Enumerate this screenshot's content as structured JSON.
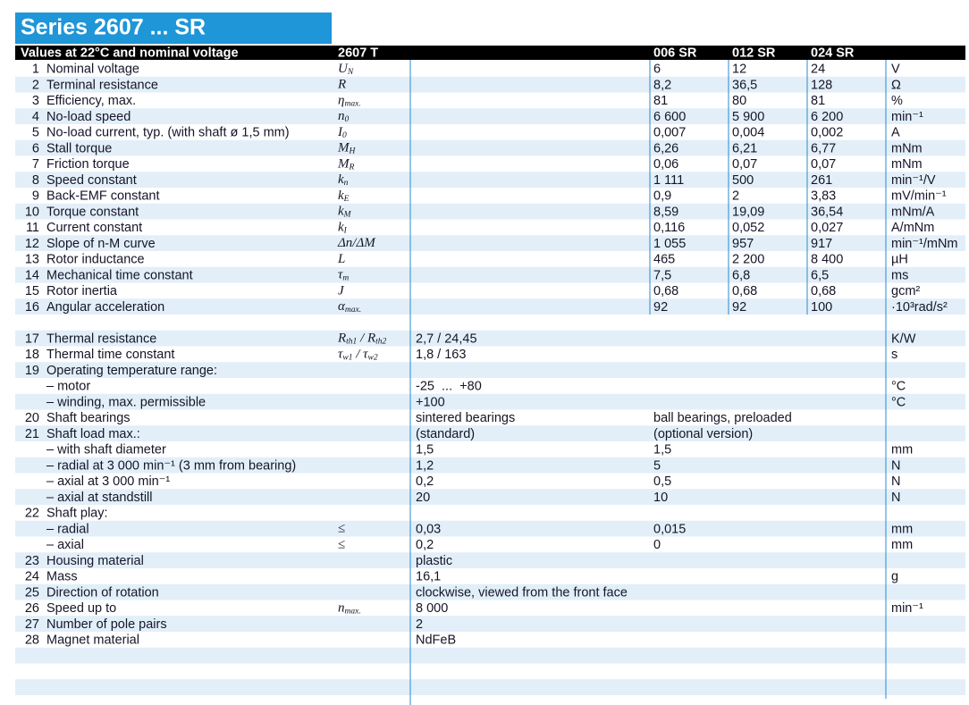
{
  "title": "Series 2607 ... SR",
  "header": {
    "conditions": "Values at 22°C and nominal voltage",
    "type": "2607 T",
    "variants": [
      "006 SR",
      "012 SR",
      "024 SR"
    ]
  },
  "block1": [
    {
      "no": "1",
      "label": "Nominal voltage",
      "symbol": [
        "U",
        "N"
      ],
      "sr_values": [
        "6",
        "12",
        "24"
      ],
      "unit": "V"
    },
    {
      "no": "2",
      "label": "Terminal resistance",
      "symbol": [
        "R"
      ],
      "sr_values": [
        "8,2",
        "36,5",
        "128"
      ],
      "unit": "Ω"
    },
    {
      "no": "3",
      "label": "Efficiency, max.",
      "symbol": [
        "η",
        "max."
      ],
      "sr_values": [
        "81",
        "80",
        "81"
      ],
      "unit": "%"
    },
    {
      "no": "4",
      "label": "No-load speed",
      "symbol": [
        "n",
        "0"
      ],
      "sr_values": [
        "6 600",
        "5 900",
        "6 200"
      ],
      "unit": "min⁻¹"
    },
    {
      "no": "5",
      "label": "No-load current, typ. (with shaft ø 1,5 mm)",
      "symbol": [
        "I",
        "0"
      ],
      "sr_values": [
        "0,007",
        "0,004",
        "0,002"
      ],
      "unit": "A"
    },
    {
      "no": "6",
      "label": "Stall torque",
      "symbol": [
        "M",
        "H"
      ],
      "sr_values": [
        "6,26",
        "6,21",
        "6,77"
      ],
      "unit": "mNm"
    },
    {
      "no": "7",
      "label": "Friction torque",
      "symbol": [
        "M",
        "R"
      ],
      "sr_values": [
        "0,06",
        "0,07",
        "0,07"
      ],
      "unit": "mNm"
    },
    {
      "no": "8",
      "label": "Speed constant",
      "symbol": [
        "k",
        "n"
      ],
      "sr_values": [
        "1 111",
        "500",
        "261"
      ],
      "unit": "min⁻¹/V"
    },
    {
      "no": "9",
      "label": "Back-EMF constant",
      "symbol": [
        "k",
        "E"
      ],
      "sr_values": [
        "0,9",
        "2",
        "3,83"
      ],
      "unit": "mV/min⁻¹"
    },
    {
      "no": "10",
      "label": "Torque constant",
      "symbol": [
        "k",
        "M"
      ],
      "sr_values": [
        "8,59",
        "19,09",
        "36,54"
      ],
      "unit": "mNm/A"
    },
    {
      "no": "11",
      "label": "Current constant",
      "symbol": [
        "k",
        "I"
      ],
      "sr_values": [
        "0,116",
        "0,052",
        "0,027"
      ],
      "unit": "A/mNm"
    },
    {
      "no": "12",
      "label": "Slope of n-M curve",
      "symbol": [
        "Δn/ΔM"
      ],
      "sr_values": [
        "1 055",
        "957",
        "917"
      ],
      "unit": "min⁻¹/mNm"
    },
    {
      "no": "13",
      "label": "Rotor inductance",
      "symbol": [
        "L"
      ],
      "sr_values": [
        "465",
        "2 200",
        "8 400"
      ],
      "unit": "µH"
    },
    {
      "no": "14",
      "label": "Mechanical time constant",
      "symbol": [
        "τ",
        "m"
      ],
      "sr_values": [
        "7,5",
        "6,8",
        "6,5"
      ],
      "unit": "ms"
    },
    {
      "no": "15",
      "label": "Rotor inertia",
      "symbol": [
        "J"
      ],
      "sr_values": [
        "0,68",
        "0,68",
        "0,68"
      ],
      "unit": "gcm²"
    },
    {
      "no": "16",
      "label": "Angular acceleration",
      "symbol": [
        "α",
        "max."
      ],
      "sr_values": [
        "92",
        "92",
        "100"
      ],
      "unit": "·10³rad/s²"
    }
  ],
  "block2": [
    {
      "no": "17",
      "label": "Thermal resistance",
      "symbol": [
        "R",
        "th1",
        " / R",
        "th2"
      ],
      "values": [
        "2,7 / 24,45"
      ],
      "unit": "K/W"
    },
    {
      "no": "18",
      "label": "Thermal time constant",
      "symbol": [
        "τ",
        "w1",
        " / τ",
        "w2"
      ],
      "values": [
        "1,8 / 163"
      ],
      "unit": "s"
    },
    {
      "no": "19",
      "label": "Operating temperature range:"
    },
    {
      "label": "– motor",
      "values": [
        "-25  ...  +80"
      ],
      "unit": "°C"
    },
    {
      "label": "– winding, max. permissible",
      "values": [
        "+100"
      ],
      "unit": "°C"
    },
    {
      "no": "20",
      "label": "Shaft bearings",
      "values": [
        "sintered bearings",
        "ball bearings, preloaded"
      ]
    },
    {
      "no": "21",
      "label": "Shaft load max.:",
      "values": [
        "(standard)",
        "(optional version)"
      ]
    },
    {
      "label": "– with shaft diameter",
      "values": [
        "1,5",
        "1,5"
      ],
      "unit": "mm"
    },
    {
      "label": "– radial at 3 000 min⁻¹ (3 mm from bearing)",
      "values": [
        "1,2",
        "5"
      ],
      "unit": "N"
    },
    {
      "label": "– axial at 3 000 min⁻¹",
      "values": [
        "0,2",
        "0,5"
      ],
      "unit": "N"
    },
    {
      "label": "– axial at standstill",
      "values": [
        "20",
        "10"
      ],
      "unit": "N"
    },
    {
      "no": "22",
      "label": "Shaft play:"
    },
    {
      "label": "– radial",
      "symbol": [
        "≤"
      ],
      "values": [
        "0,03",
        "0,015"
      ],
      "unit": "mm"
    },
    {
      "label": "– axial",
      "symbol": [
        "≤"
      ],
      "values": [
        "0,2",
        "0"
      ],
      "unit": "mm"
    },
    {
      "no": "23",
      "label": "Housing material",
      "values": [
        "plastic"
      ]
    },
    {
      "no": "24",
      "label": "Mass",
      "values": [
        "16,1"
      ],
      "unit": "g"
    },
    {
      "no": "25",
      "label": "Direction of rotation",
      "values": [
        "clockwise, viewed from the front face"
      ]
    },
    {
      "no": "26",
      "label": "Speed up to",
      "symbol": [
        "n",
        "max."
      ],
      "values": [
        "8 000"
      ],
      "unit": "min⁻¹"
    },
    {
      "no": "27",
      "label": "Number of pole pairs",
      "values": [
        "2"
      ]
    },
    {
      "no": "28",
      "label": "Magnet material",
      "values": [
        "NdFeB"
      ]
    }
  ]
}
